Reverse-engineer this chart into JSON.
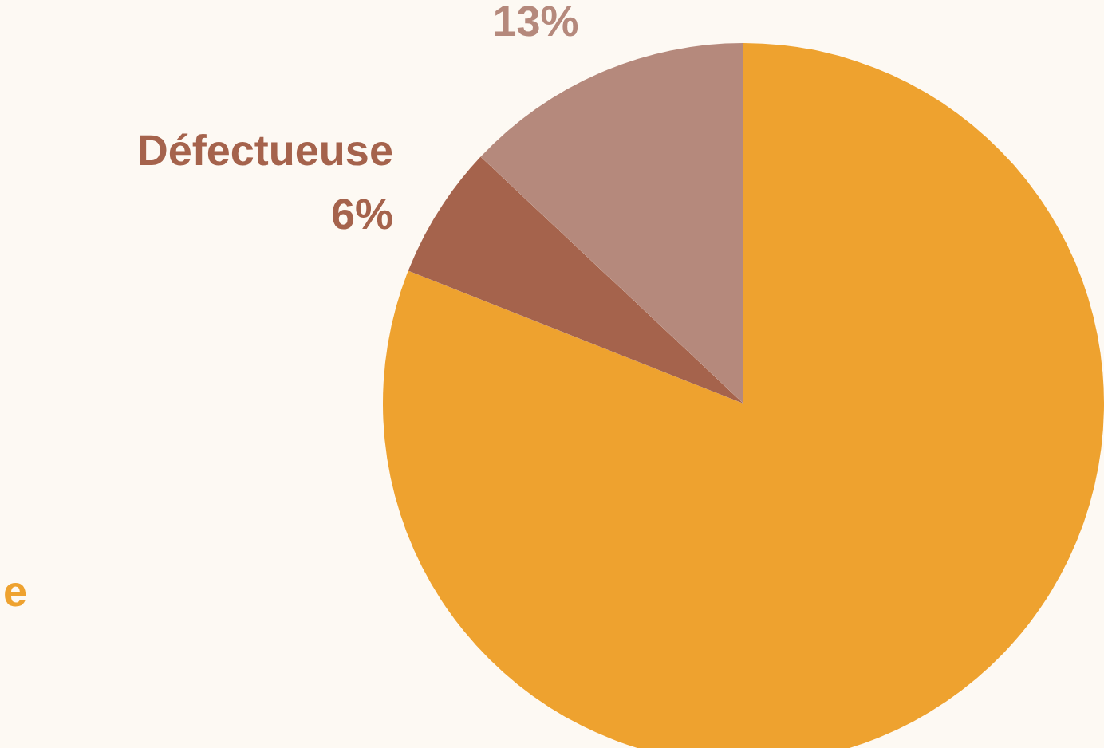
{
  "chart_data": {
    "type": "pie",
    "categories": [
      null,
      "Défectueuse",
      null
    ],
    "values": [
      81,
      6,
      13
    ],
    "colors": [
      "#eea22f",
      "#a5634c",
      "#b5897c"
    ],
    "value_labels": [
      null,
      "6%",
      "13%"
    ],
    "annotations": [
      "e"
    ]
  }
}
